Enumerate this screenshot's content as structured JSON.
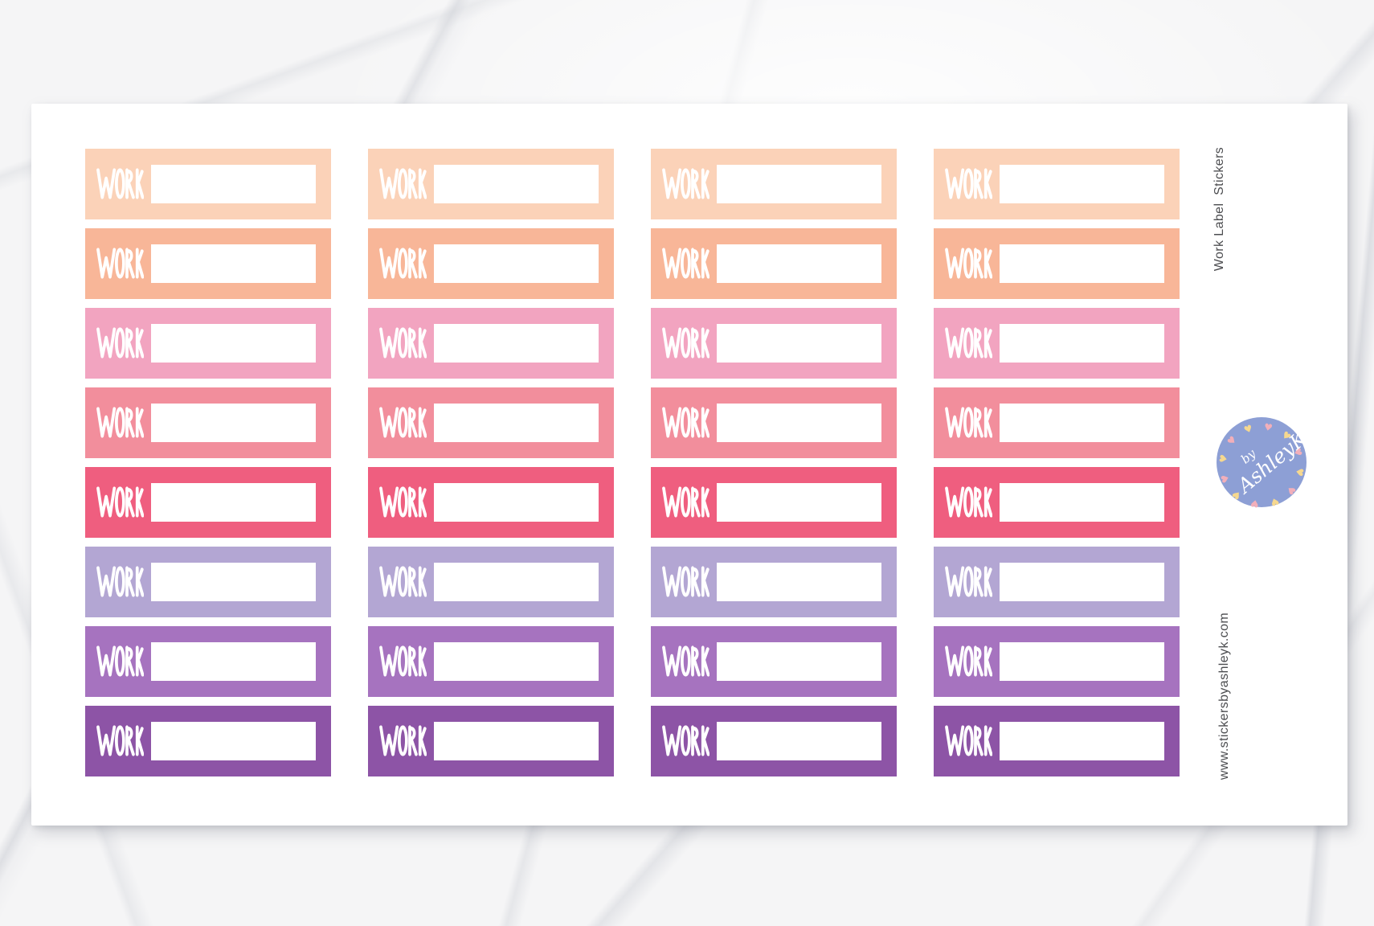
{
  "product": {
    "side_title": "Work Label  Stickers",
    "website": "www.stickersbyashleyk.com",
    "sticker_label": "WORK",
    "grid": {
      "columns": 4,
      "rows": 8
    },
    "row_colors": [
      {
        "name": "light-peach",
        "hex": "#fbd2b8"
      },
      {
        "name": "peach",
        "hex": "#f8b698"
      },
      {
        "name": "pink",
        "hex": "#f2a4c0"
      },
      {
        "name": "coral-pink",
        "hex": "#f28e9c"
      },
      {
        "name": "raspberry",
        "hex": "#ef5e7f"
      },
      {
        "name": "lavender",
        "hex": "#b3a6d3"
      },
      {
        "name": "purple",
        "hex": "#a673bf"
      },
      {
        "name": "dark-purple",
        "hex": "#8d54a6"
      }
    ],
    "logo": {
      "text_line1": "by",
      "text_line2": "AshleyK",
      "circle_color": "#8d9fd5",
      "heart_pink": "#f2afba",
      "heart_yellow": "#f6d88f"
    },
    "side_text_color": "#4c4d50"
  }
}
